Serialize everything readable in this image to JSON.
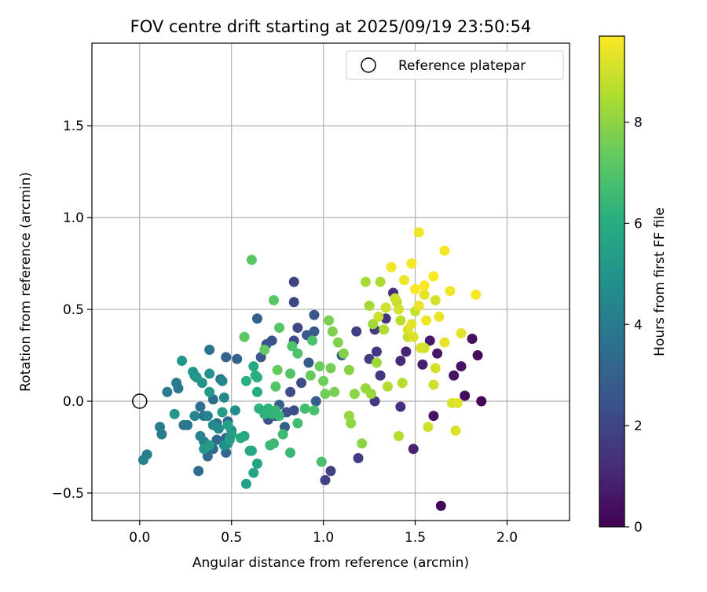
{
  "chart_data": {
    "type": "scatter",
    "title": "FOV centre drift starting at 2025/09/19 23:50:54",
    "xlabel": "Angular distance from reference (arcmin)",
    "ylabel": "Rotation from reference (arcmin)",
    "xlim": [
      -0.26,
      2.34
    ],
    "ylim": [
      -0.65,
      1.95
    ],
    "xticks": [
      0.0,
      0.5,
      1.0,
      1.5,
      2.0
    ],
    "xtick_labels": [
      "0.0",
      "0.5",
      "1.0",
      "1.5",
      "2.0"
    ],
    "yticks": [
      -0.5,
      0.0,
      0.5,
      1.0,
      1.5
    ],
    "ytick_labels": [
      "−0.5",
      "0.0",
      "0.5",
      "1.0",
      "1.5"
    ],
    "grid": true,
    "legend": {
      "position": "top-right",
      "entries": [
        "Reference platepar"
      ]
    },
    "reference_point": {
      "x": 0.0,
      "y": 0.0
    },
    "colorbar": {
      "label": "Hours from first FF file",
      "range": [
        0,
        9.7
      ],
      "ticks": [
        0,
        2,
        4,
        6,
        8
      ],
      "tick_labels": [
        "0",
        "2",
        "4",
        "6",
        "8"
      ],
      "colormap": "viridis"
    },
    "points": [
      [
        1.86,
        0.0,
        0.15
      ],
      [
        1.84,
        0.25,
        0.25
      ],
      [
        1.81,
        0.34,
        0.35
      ],
      [
        1.77,
        0.03,
        0.3
      ],
      [
        1.75,
        0.19,
        0.45
      ],
      [
        1.71,
        0.14,
        0.55
      ],
      [
        1.64,
        -0.57,
        0.2
      ],
      [
        1.6,
        -0.08,
        0.5
      ],
      [
        1.62,
        0.26,
        0.6
      ],
      [
        1.58,
        0.33,
        0.7
      ],
      [
        1.54,
        0.2,
        0.8
      ],
      [
        1.49,
        -0.26,
        0.9
      ],
      [
        1.45,
        0.27,
        1.0
      ],
      [
        1.42,
        0.22,
        1.1
      ],
      [
        1.42,
        -0.03,
        1.2
      ],
      [
        1.38,
        0.59,
        1.3
      ],
      [
        1.34,
        0.45,
        1.4
      ],
      [
        1.31,
        0.14,
        1.5
      ],
      [
        1.29,
        0.27,
        1.55
      ],
      [
        1.28,
        0.0,
        1.6
      ],
      [
        1.28,
        0.39,
        1.65
      ],
      [
        1.25,
        0.23,
        1.7
      ],
      [
        1.19,
        -0.31,
        1.75
      ],
      [
        1.18,
        0.38,
        1.8
      ],
      [
        1.04,
        -0.38,
        1.85
      ],
      [
        1.01,
        -0.43,
        1.9
      ],
      [
        0.84,
        0.65,
        1.95
      ],
      [
        0.84,
        0.54,
        2.0
      ],
      [
        0.86,
        0.4,
        2.1
      ],
      [
        0.84,
        0.33,
        2.15
      ],
      [
        0.88,
        0.1,
        2.2
      ],
      [
        0.82,
        0.05,
        2.25
      ],
      [
        0.84,
        -0.05,
        2.3
      ],
      [
        0.8,
        -0.06,
        2.35
      ],
      [
        0.74,
        -0.08,
        2.4
      ],
      [
        0.7,
        -0.1,
        2.45
      ],
      [
        0.72,
        0.33,
        2.5
      ],
      [
        0.69,
        0.31,
        2.55
      ],
      [
        0.66,
        0.24,
        2.6
      ],
      [
        0.95,
        0.47,
        2.65
      ],
      [
        0.95,
        0.38,
        2.7
      ],
      [
        0.91,
        0.36,
        2.75
      ],
      [
        0.92,
        0.21,
        2.8
      ],
      [
        0.96,
        0.0,
        2.85
      ],
      [
        1.1,
        0.25,
        2.9
      ],
      [
        0.79,
        -0.14,
        2.95
      ],
      [
        0.76,
        -0.02,
        3.0
      ],
      [
        0.64,
        0.45,
        3.0
      ],
      [
        0.53,
        0.23,
        3.05
      ],
      [
        0.47,
        0.24,
        3.1
      ],
      [
        0.48,
        -0.11,
        3.15
      ],
      [
        0.47,
        -0.2,
        3.2
      ],
      [
        0.47,
        -0.28,
        3.25
      ],
      [
        0.42,
        -0.21,
        3.3
      ],
      [
        0.4,
        -0.26,
        3.35
      ],
      [
        0.37,
        -0.3,
        3.4
      ],
      [
        0.32,
        -0.38,
        3.45
      ],
      [
        0.35,
        -0.08,
        3.5
      ],
      [
        0.33,
        -0.03,
        3.5
      ],
      [
        0.4,
        0.01,
        3.55
      ],
      [
        0.42,
        -0.12,
        3.6
      ],
      [
        0.44,
        0.12,
        3.65
      ],
      [
        0.38,
        0.28,
        3.7
      ],
      [
        0.3,
        0.14,
        3.75
      ],
      [
        0.26,
        -0.13,
        3.8
      ],
      [
        0.24,
        -0.13,
        3.85
      ],
      [
        0.21,
        0.07,
        3.9
      ],
      [
        0.2,
        0.1,
        3.95
      ],
      [
        0.15,
        0.05,
        4.0
      ],
      [
        0.12,
        -0.18,
        4.05
      ],
      [
        0.11,
        -0.14,
        4.1
      ],
      [
        0.04,
        -0.29,
        4.15
      ],
      [
        0.02,
        -0.32,
        4.2
      ],
      [
        0.35,
        -0.22,
        4.25
      ],
      [
        0.33,
        -0.19,
        4.3
      ],
      [
        0.37,
        -0.08,
        4.35
      ],
      [
        0.3,
        -0.08,
        4.4
      ],
      [
        0.45,
        0.11,
        4.45
      ],
      [
        0.46,
        0.02,
        4.5
      ],
      [
        0.4,
        -0.13,
        4.55
      ],
      [
        0.43,
        -0.15,
        4.6
      ],
      [
        0.5,
        -0.16,
        4.65
      ],
      [
        0.52,
        -0.05,
        4.7
      ],
      [
        0.49,
        -0.2,
        4.75
      ],
      [
        0.48,
        -0.23,
        4.8
      ],
      [
        0.46,
        -0.24,
        4.85
      ],
      [
        0.38,
        0.15,
        4.9
      ],
      [
        0.34,
        0.1,
        4.95
      ],
      [
        0.29,
        0.16,
        5.0
      ],
      [
        0.23,
        0.22,
        5.05
      ],
      [
        0.19,
        -0.07,
        5.1
      ],
      [
        0.31,
        0.13,
        5.15
      ],
      [
        0.38,
        0.05,
        5.2
      ],
      [
        0.35,
        -0.26,
        5.25
      ],
      [
        0.38,
        -0.24,
        5.3
      ],
      [
        0.45,
        -0.06,
        5.35
      ],
      [
        0.49,
        -0.21,
        5.4
      ],
      [
        0.5,
        -0.18,
        5.45
      ],
      [
        0.48,
        -0.13,
        5.5
      ],
      [
        0.58,
        -0.45,
        5.55
      ],
      [
        0.64,
        -0.34,
        5.6
      ],
      [
        0.62,
        -0.39,
        5.65
      ],
      [
        0.61,
        -0.27,
        5.7
      ],
      [
        0.57,
        -0.19,
        5.75
      ],
      [
        0.6,
        -0.27,
        5.8
      ],
      [
        0.55,
        -0.2,
        5.85
      ],
      [
        0.62,
        0.19,
        5.9
      ],
      [
        0.64,
        0.05,
        5.95
      ],
      [
        0.64,
        0.13,
        6.0
      ],
      [
        0.63,
        0.14,
        6.05
      ],
      [
        0.58,
        0.11,
        6.1
      ],
      [
        0.65,
        -0.04,
        6.15
      ],
      [
        0.68,
        -0.07,
        6.2
      ],
      [
        0.7,
        -0.04,
        6.25
      ],
      [
        0.72,
        -0.07,
        6.3
      ],
      [
        0.74,
        -0.05,
        6.35
      ],
      [
        0.76,
        -0.08,
        6.4
      ],
      [
        0.82,
        -0.28,
        6.45
      ],
      [
        0.71,
        -0.24,
        6.5
      ],
      [
        0.73,
        -0.23,
        6.55
      ],
      [
        0.78,
        -0.18,
        6.6
      ],
      [
        0.86,
        -0.12,
        6.65
      ],
      [
        0.9,
        -0.04,
        6.7
      ],
      [
        0.95,
        -0.05,
        6.75
      ],
      [
        0.99,
        -0.33,
        6.8
      ],
      [
        0.94,
        0.33,
        6.85
      ],
      [
        0.86,
        0.26,
        6.9
      ],
      [
        0.83,
        0.3,
        6.95
      ],
      [
        0.82,
        0.15,
        7.0
      ],
      [
        0.74,
        0.08,
        7.05
      ],
      [
        0.76,
        0.4,
        7.1
      ],
      [
        0.73,
        0.55,
        7.15
      ],
      [
        0.61,
        0.77,
        7.2
      ],
      [
        0.57,
        0.35,
        7.25
      ],
      [
        0.68,
        0.28,
        7.3
      ],
      [
        0.75,
        0.17,
        7.35
      ],
      [
        0.93,
        0.14,
        7.4
      ],
      [
        0.98,
        0.19,
        7.45
      ],
      [
        1.0,
        0.11,
        7.5
      ],
      [
        1.01,
        0.04,
        7.55
      ],
      [
        1.04,
        0.18,
        7.6
      ],
      [
        1.06,
        0.05,
        7.65
      ],
      [
        1.03,
        0.44,
        7.7
      ],
      [
        1.05,
        0.38,
        7.75
      ],
      [
        1.08,
        0.32,
        7.8
      ],
      [
        1.11,
        0.26,
        7.85
      ],
      [
        1.14,
        0.17,
        7.9
      ],
      [
        1.17,
        0.04,
        7.95
      ],
      [
        1.21,
        -0.23,
        8.0
      ],
      [
        1.15,
        -0.12,
        8.05
      ],
      [
        1.14,
        -0.08,
        8.1
      ],
      [
        1.23,
        0.07,
        8.15
      ],
      [
        1.26,
        0.04,
        8.2
      ],
      [
        1.29,
        0.21,
        8.25
      ],
      [
        1.27,
        0.42,
        8.3
      ],
      [
        1.25,
        0.52,
        8.35
      ],
      [
        1.23,
        0.65,
        8.4
      ],
      [
        1.31,
        0.65,
        8.45
      ],
      [
        1.33,
        0.39,
        8.5
      ],
      [
        1.35,
        0.08,
        8.55
      ],
      [
        1.41,
        -0.19,
        8.6
      ],
      [
        1.43,
        0.1,
        8.65
      ],
      [
        1.42,
        0.44,
        8.7
      ],
      [
        1.4,
        0.54,
        8.75
      ],
      [
        1.46,
        0.35,
        8.8
      ],
      [
        1.5,
        0.49,
        8.85
      ],
      [
        1.54,
        0.29,
        8.9
      ],
      [
        1.57,
        -0.14,
        8.95
      ],
      [
        1.6,
        0.09,
        9.0
      ],
      [
        1.61,
        0.18,
        9.05
      ],
      [
        1.61,
        0.55,
        9.1
      ],
      [
        1.7,
        -0.01,
        9.15
      ],
      [
        1.72,
        -0.16,
        9.2
      ],
      [
        1.73,
        -0.01,
        9.25
      ],
      [
        1.75,
        0.37,
        9.3
      ],
      [
        1.66,
        0.32,
        9.35
      ],
      [
        1.63,
        0.46,
        9.4
      ],
      [
        1.56,
        0.44,
        9.45
      ],
      [
        1.52,
        0.92,
        9.5
      ],
      [
        1.66,
        0.82,
        9.55
      ],
      [
        1.48,
        0.75,
        9.6
      ],
      [
        1.5,
        0.61,
        9.65
      ],
      [
        1.55,
        0.63,
        9.7
      ],
      [
        1.6,
        0.68,
        9.65
      ],
      [
        1.83,
        0.58,
        9.6
      ],
      [
        1.69,
        0.6,
        9.55
      ],
      [
        1.37,
        0.73,
        9.5
      ],
      [
        1.44,
        0.66,
        9.45
      ],
      [
        1.52,
        0.52,
        9.4
      ],
      [
        1.55,
        0.58,
        9.35
      ],
      [
        1.48,
        0.42,
        9.3
      ],
      [
        1.46,
        0.39,
        9.25
      ],
      [
        1.49,
        0.35,
        9.2
      ],
      [
        1.53,
        0.29,
        9.15
      ],
      [
        1.55,
        0.29,
        9.1
      ],
      [
        1.41,
        0.5,
        9.05
      ],
      [
        1.39,
        0.56,
        9.0
      ],
      [
        1.34,
        0.51,
        8.95
      ],
      [
        1.3,
        0.46,
        8.9
      ]
    ]
  }
}
